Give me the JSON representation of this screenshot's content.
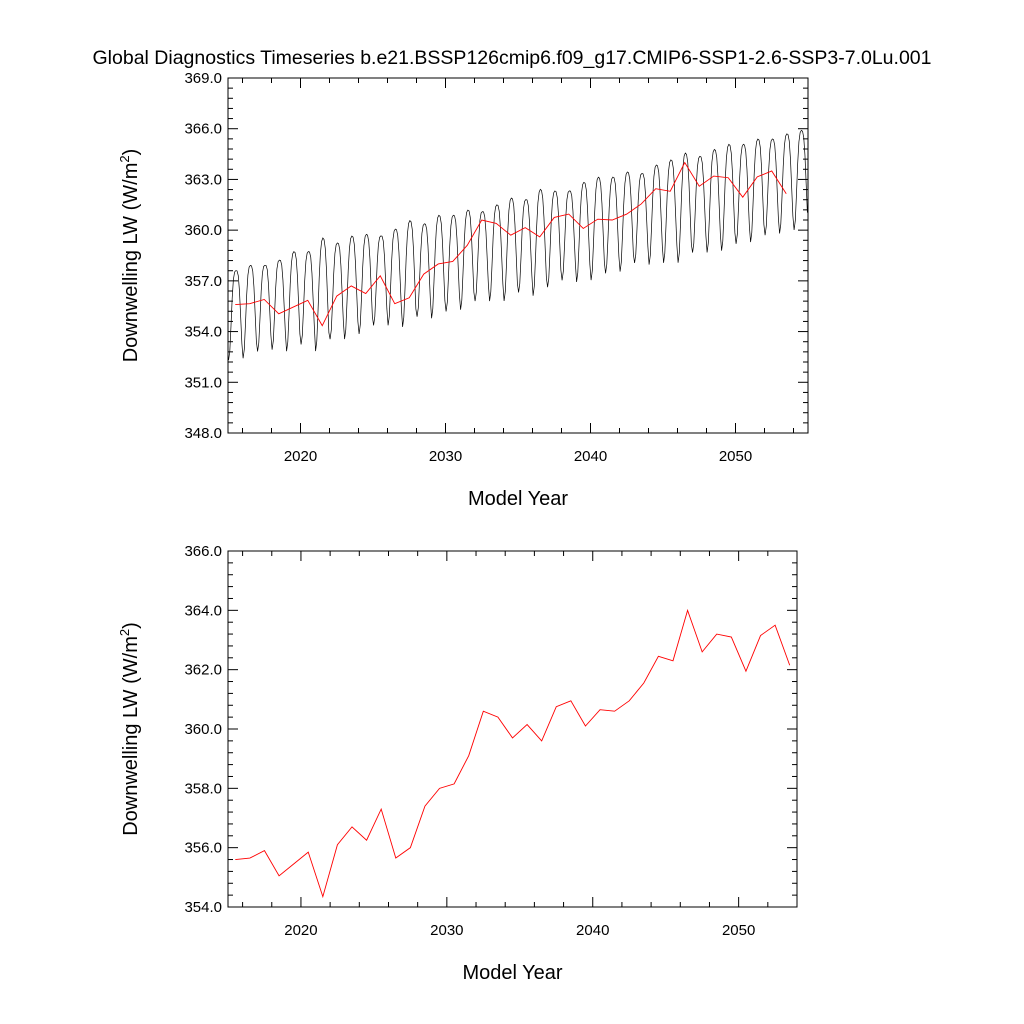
{
  "title": "Global Diagnostics Timeseries b.e21.BSSP126cmip6.f09_g17.CMIP6-SSP1-2.6-SSP3-7.0Lu.001",
  "chart_data": [
    {
      "type": "line",
      "xlabel": "Model Year",
      "ylabel": "Downwelling LW (W/m",
      "ylabel_sup": "2",
      "ylabel_close": ")",
      "xlim": [
        2015,
        2055
      ],
      "ylim": [
        348.0,
        369.0
      ],
      "x_ticks": [
        2020,
        2030,
        2040,
        2050
      ],
      "y_ticks": [
        "348.0",
        "351.0",
        "354.0",
        "357.0",
        "360.0",
        "363.0",
        "366.0",
        "369.0"
      ],
      "colors": {
        "monthly": "#000000",
        "annual": "#ff0000"
      },
      "grid": false,
      "series": [
        {
          "key": "monthly",
          "start_year": 2015.04,
          "amplitude_by_year": [
            2.6,
            2.7,
            2.5,
            2.6,
            2.9,
            2.7,
            3.3,
            2.8,
            3.0,
            2.9,
            2.6,
            2.8,
            3.1,
            2.7,
            3.0,
            2.8,
            2.9,
            2.6,
            2.8,
            3.0,
            2.7,
            3.1,
            2.8,
            2.6,
            2.9,
            3.0,
            2.8,
            2.9,
            2.6,
            2.9,
            3.0,
            3.2,
            2.8,
            3.0,
            3.1,
            2.9,
            3.0,
            2.8,
            2.9,
            2.9
          ]
        },
        {
          "key": "annual",
          "x": [
            2015.5,
            2016.5,
            2017.5,
            2018.5,
            2019.5,
            2020.5,
            2021.5,
            2022.5,
            2023.5,
            2024.5,
            2025.5,
            2026.5,
            2027.5,
            2028.5,
            2029.5,
            2030.5,
            2031.5,
            2032.5,
            2033.5,
            2034.5,
            2035.5,
            2036.5,
            2037.5,
            2038.5,
            2039.5,
            2040.5,
            2041.5,
            2042.5,
            2043.5,
            2044.5,
            2045.5,
            2046.5,
            2047.5,
            2048.5,
            2049.5,
            2050.5,
            2051.5,
            2052.5,
            2053.5
          ],
          "y": [
            355.6,
            355.65,
            355.9,
            355.05,
            355.45,
            355.85,
            354.35,
            356.1,
            356.7,
            356.25,
            357.3,
            355.65,
            356.0,
            357.4,
            358.0,
            358.15,
            359.1,
            360.6,
            360.4,
            359.7,
            360.15,
            359.6,
            360.75,
            360.95,
            360.1,
            360.65,
            360.6,
            360.95,
            361.55,
            362.45,
            362.3,
            364.0,
            362.6,
            363.2,
            363.1,
            361.95,
            363.15,
            363.5,
            362.15
          ]
        }
      ]
    },
    {
      "type": "line",
      "xlabel": "Model Year",
      "ylabel": "Downwelling LW (W/m",
      "ylabel_sup": "2",
      "ylabel_close": ")",
      "xlim": [
        2015,
        2054
      ],
      "ylim": [
        354.0,
        366.0
      ],
      "x_ticks": [
        2020,
        2030,
        2040,
        2050
      ],
      "y_ticks": [
        "354.0",
        "356.0",
        "358.0",
        "360.0",
        "362.0",
        "364.0",
        "366.0"
      ],
      "colors": {
        "annual": "#ff0000"
      },
      "grid": false,
      "series": [
        {
          "key": "annual",
          "x": [
            2015.5,
            2016.5,
            2017.5,
            2018.5,
            2019.5,
            2020.5,
            2021.5,
            2022.5,
            2023.5,
            2024.5,
            2025.5,
            2026.5,
            2027.5,
            2028.5,
            2029.5,
            2030.5,
            2031.5,
            2032.5,
            2033.5,
            2034.5,
            2035.5,
            2036.5,
            2037.5,
            2038.5,
            2039.5,
            2040.5,
            2041.5,
            2042.5,
            2043.5,
            2044.5,
            2045.5,
            2046.5,
            2047.5,
            2048.5,
            2049.5,
            2050.5,
            2051.5,
            2052.5,
            2053.5
          ],
          "y": [
            355.6,
            355.65,
            355.9,
            355.05,
            355.45,
            355.85,
            354.35,
            356.1,
            356.7,
            356.25,
            357.3,
            355.65,
            356.0,
            357.4,
            358.0,
            358.15,
            359.1,
            360.6,
            360.4,
            359.7,
            360.15,
            359.6,
            360.75,
            360.95,
            360.1,
            360.65,
            360.6,
            360.95,
            361.55,
            362.45,
            362.3,
            364.0,
            362.6,
            363.2,
            363.1,
            361.95,
            363.15,
            363.5,
            362.15
          ]
        }
      ]
    }
  ]
}
